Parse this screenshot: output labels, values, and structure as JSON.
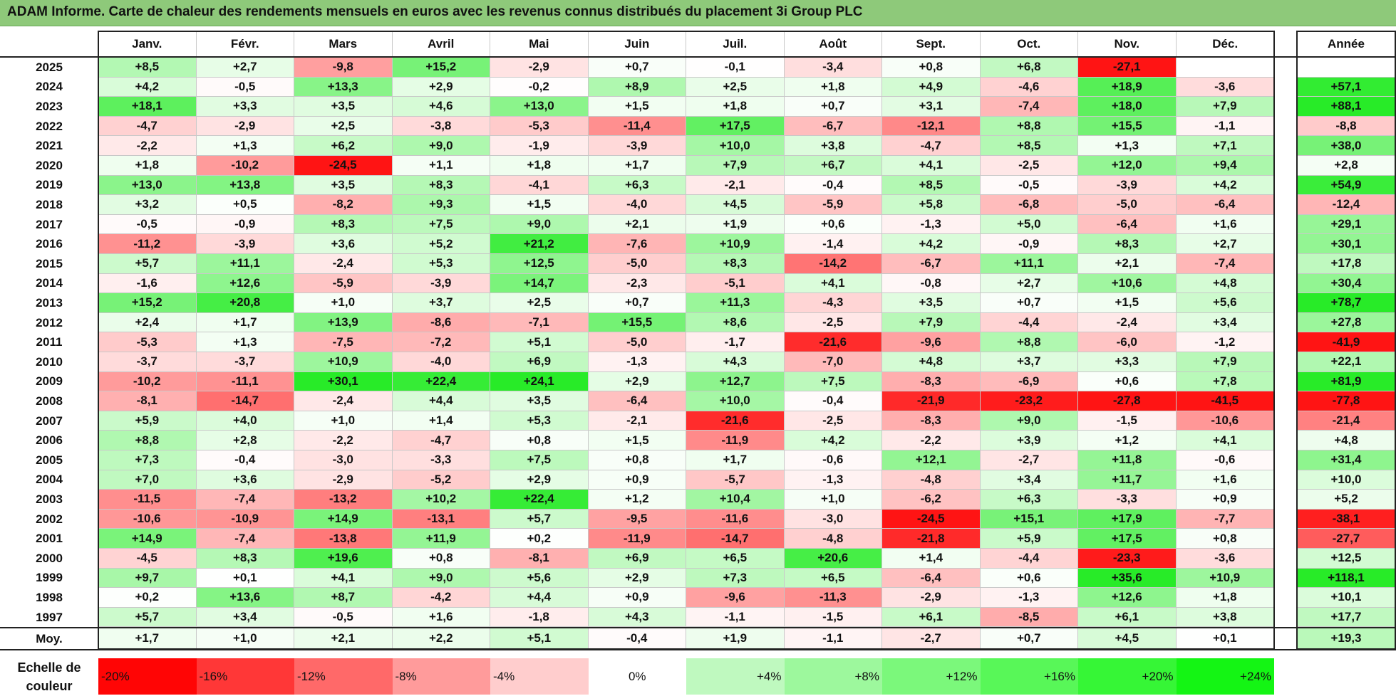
{
  "title": "ADAM Informe. Carte de chaleur des rendements mensuels en euros avec les revenus connus distribués du placement 3i Group PLC",
  "chart_data": {
    "type": "heatmap",
    "columns": [
      "Janv.",
      "Févr.",
      "Mars",
      "Avril",
      "Mai",
      "Juin",
      "Juil.",
      "Août",
      "Sept.",
      "Oct.",
      "Nov.",
      "Déc."
    ],
    "year_column": "Année",
    "rows": [
      {
        "label": "2025",
        "values": [
          "+8,5",
          "+2,7",
          "-9,8",
          "+15,2",
          "-2,9",
          "+0,7",
          "-0,1",
          "-3,4",
          "+0,8",
          "+6,8",
          "-27,1",
          ""
        ],
        "year": ""
      },
      {
        "label": "2024",
        "values": [
          "+4,2",
          "-0,5",
          "+13,3",
          "+2,9",
          "-0,2",
          "+8,9",
          "+2,5",
          "+1,8",
          "+4,9",
          "-4,6",
          "+18,9",
          "-3,6"
        ],
        "year": "+57,1"
      },
      {
        "label": "2023",
        "values": [
          "+18,1",
          "+3,3",
          "+3,5",
          "+4,6",
          "+13,0",
          "+1,5",
          "+1,8",
          "+0,7",
          "+3,1",
          "-7,4",
          "+18,0",
          "+7,9"
        ],
        "year": "+88,1"
      },
      {
        "label": "2022",
        "values": [
          "-4,7",
          "-2,9",
          "+2,5",
          "-3,8",
          "-5,3",
          "-11,4",
          "+17,5",
          "-6,7",
          "-12,1",
          "+8,8",
          "+15,5",
          "-1,1"
        ],
        "year": "-8,8"
      },
      {
        "label": "2021",
        "values": [
          "-2,2",
          "+1,3",
          "+6,2",
          "+9,0",
          "-1,9",
          "-3,9",
          "+10,0",
          "+3,8",
          "-4,7",
          "+8,5",
          "+1,3",
          "+7,1"
        ],
        "year": "+38,0"
      },
      {
        "label": "2020",
        "values": [
          "+1,8",
          "-10,2",
          "-24,5",
          "+1,1",
          "+1,8",
          "+1,7",
          "+7,9",
          "+6,7",
          "+4,1",
          "-2,5",
          "+12,0",
          "+9,4"
        ],
        "year": "+2,8"
      },
      {
        "label": "2019",
        "values": [
          "+13,0",
          "+13,8",
          "+3,5",
          "+8,3",
          "-4,1",
          "+6,3",
          "-2,1",
          "-0,4",
          "+8,5",
          "-0,5",
          "-3,9",
          "+4,2"
        ],
        "year": "+54,9"
      },
      {
        "label": "2018",
        "values": [
          "+3,2",
          "+0,5",
          "-8,2",
          "+9,3",
          "+1,5",
          "-4,0",
          "+4,5",
          "-5,9",
          "+5,8",
          "-6,8",
          "-5,0",
          "-6,4"
        ],
        "year": "-12,4"
      },
      {
        "label": "2017",
        "values": [
          "-0,5",
          "-0,9",
          "+8,3",
          "+7,5",
          "+9,0",
          "+2,1",
          "+1,9",
          "+0,6",
          "-1,3",
          "+5,0",
          "-6,4",
          "+1,6"
        ],
        "year": "+29,1"
      },
      {
        "label": "2016",
        "values": [
          "-11,2",
          "-3,9",
          "+3,6",
          "+5,2",
          "+21,2",
          "-7,6",
          "+10,9",
          "-1,4",
          "+4,2",
          "-0,9",
          "+8,3",
          "+2,7"
        ],
        "year": "+30,1"
      },
      {
        "label": "2015",
        "values": [
          "+5,7",
          "+11,1",
          "-2,4",
          "+5,3",
          "+12,5",
          "-5,0",
          "+8,3",
          "-14,2",
          "-6,7",
          "+11,1",
          "+2,1",
          "-7,4"
        ],
        "year": "+17,8"
      },
      {
        "label": "2014",
        "values": [
          "-1,6",
          "+12,6",
          "-5,9",
          "-3,9",
          "+14,7",
          "-2,3",
          "-5,1",
          "+4,1",
          "-0,8",
          "+2,7",
          "+10,6",
          "+4,8"
        ],
        "year": "+30,4"
      },
      {
        "label": "2013",
        "values": [
          "+15,2",
          "+20,8",
          "+1,0",
          "+3,7",
          "+2,5",
          "+0,7",
          "+11,3",
          "-4,3",
          "+3,5",
          "+0,7",
          "+1,5",
          "+5,6"
        ],
        "year": "+78,7"
      },
      {
        "label": "2012",
        "values": [
          "+2,4",
          "+1,7",
          "+13,9",
          "-8,6",
          "-7,1",
          "+15,5",
          "+8,6",
          "-2,5",
          "+7,9",
          "-4,4",
          "-2,4",
          "+3,4"
        ],
        "year": "+27,8"
      },
      {
        "label": "2011",
        "values": [
          "-5,3",
          "+1,3",
          "-7,5",
          "-7,2",
          "+5,1",
          "-5,0",
          "-1,7",
          "-21,6",
          "-9,6",
          "+8,8",
          "-6,0",
          "-1,2"
        ],
        "year": "-41,9"
      },
      {
        "label": "2010",
        "values": [
          "-3,7",
          "-3,7",
          "+10,9",
          "-4,0",
          "+6,9",
          "-1,3",
          "+4,3",
          "-7,0",
          "+4,8",
          "+3,7",
          "+3,3",
          "+7,9"
        ],
        "year": "+22,1"
      },
      {
        "label": "2009",
        "values": [
          "-10,2",
          "-11,1",
          "+30,1",
          "+22,4",
          "+24,1",
          "+2,9",
          "+12,7",
          "+7,5",
          "-8,3",
          "-6,9",
          "+0,6",
          "+7,8"
        ],
        "year": "+81,9"
      },
      {
        "label": "2008",
        "values": [
          "-8,1",
          "-14,7",
          "-2,4",
          "+4,4",
          "+3,5",
          "-6,4",
          "+10,0",
          "-0,4",
          "-21,9",
          "-23,2",
          "-27,8",
          "-41,5"
        ],
        "year": "-77,8"
      },
      {
        "label": "2007",
        "values": [
          "+5,9",
          "+4,0",
          "+1,0",
          "+1,4",
          "+5,3",
          "-2,1",
          "-21,6",
          "-2,5",
          "-8,3",
          "+9,0",
          "-1,5",
          "-10,6"
        ],
        "year": "-21,4"
      },
      {
        "label": "2006",
        "values": [
          "+8,8",
          "+2,8",
          "-2,2",
          "-4,7",
          "+0,8",
          "+1,5",
          "-11,9",
          "+4,2",
          "-2,2",
          "+3,9",
          "+1,2",
          "+4,1"
        ],
        "year": "+4,8"
      },
      {
        "label": "2005",
        "values": [
          "+7,3",
          "-0,4",
          "-3,0",
          "-3,3",
          "+7,5",
          "+0,8",
          "+1,7",
          "-0,6",
          "+12,1",
          "-2,7",
          "+11,8",
          "-0,6"
        ],
        "year": "+31,4"
      },
      {
        "label": "2004",
        "values": [
          "+7,0",
          "+3,6",
          "-2,9",
          "-5,2",
          "+2,9",
          "+0,9",
          "-5,7",
          "-1,3",
          "-4,8",
          "+3,4",
          "+11,7",
          "+1,6"
        ],
        "year": "+10,0"
      },
      {
        "label": "2003",
        "values": [
          "-11,5",
          "-7,4",
          "-13,2",
          "+10,2",
          "+22,4",
          "+1,2",
          "+10,4",
          "+1,0",
          "-6,2",
          "+6,3",
          "-3,3",
          "+0,9"
        ],
        "year": "+5,2"
      },
      {
        "label": "2002",
        "values": [
          "-10,6",
          "-10,9",
          "+14,9",
          "-13,1",
          "+5,7",
          "-9,5",
          "-11,6",
          "-3,0",
          "-24,5",
          "+15,1",
          "+17,9",
          "-7,7"
        ],
        "year": "-38,1"
      },
      {
        "label": "2001",
        "values": [
          "+14,9",
          "-7,4",
          "-13,8",
          "+11,9",
          "+0,2",
          "-11,9",
          "-14,7",
          "-4,8",
          "-21,8",
          "+5,9",
          "+17,5",
          "+0,8"
        ],
        "year": "-27,7"
      },
      {
        "label": "2000",
        "values": [
          "-4,5",
          "+8,3",
          "+19,6",
          "+0,8",
          "-8,1",
          "+6,9",
          "+6,5",
          "+20,6",
          "+1,4",
          "-4,4",
          "-23,3",
          "-3,6"
        ],
        "year": "+12,5"
      },
      {
        "label": "1999",
        "values": [
          "+9,7",
          "+0,1",
          "+4,1",
          "+9,0",
          "+5,6",
          "+2,9",
          "+7,3",
          "+6,5",
          "-6,4",
          "+0,6",
          "+35,6",
          "+10,9"
        ],
        "year": "+118,1"
      },
      {
        "label": "1998",
        "values": [
          "+0,2",
          "+13,6",
          "+8,7",
          "-4,2",
          "+4,4",
          "+0,9",
          "-9,6",
          "-11,3",
          "-2,9",
          "-1,3",
          "+12,6",
          "+1,8"
        ],
        "year": "+10,1"
      },
      {
        "label": "1997",
        "values": [
          "+5,7",
          "+3,4",
          "-0,5",
          "+1,6",
          "-1,8",
          "+4,3",
          "-1,1",
          "-1,5",
          "+6,1",
          "-8,5",
          "+6,1",
          "+3,8"
        ],
        "year": "+17,7"
      }
    ],
    "average": {
      "label": "Moy.",
      "values": [
        "+1,7",
        "+1,0",
        "+2,1",
        "+2,2",
        "+5,1",
        "-0,4",
        "+1,9",
        "-1,1",
        "-2,7",
        "+0,7",
        "+4,5",
        "+0,1"
      ],
      "year": "+19,3"
    },
    "scale": {
      "label_line1": "Echelle de",
      "label_line2": "couleur",
      "items": [
        "-20%",
        "-16%",
        "-12%",
        "-8%",
        "-4%",
        "0%",
        "+4%",
        "+8%",
        "+12%",
        "+16%",
        "+20%",
        "+24%"
      ],
      "values": [
        -20,
        -16,
        -12,
        -8,
        -4,
        0,
        4,
        8,
        12,
        16,
        20,
        24
      ]
    },
    "colors": {
      "negative_max": "#ff0000",
      "neutral": "#ffffff",
      "positive_max": "#00ff00"
    }
  }
}
